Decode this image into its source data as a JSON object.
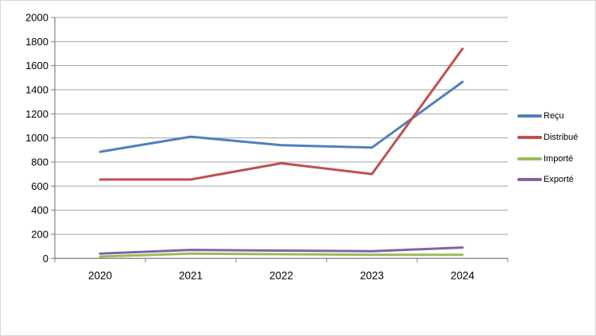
{
  "chart_data": {
    "type": "line",
    "title": "",
    "categories": [
      "2020",
      "2021",
      "2022",
      "2023",
      "2024"
    ],
    "series": [
      {
        "name": "Reçu",
        "color": "#4F81BD",
        "values": [
          885,
          1010,
          940,
          920,
          1465
        ]
      },
      {
        "name": "Distribué",
        "color": "#C0504D",
        "values": [
          655,
          655,
          790,
          700,
          1740
        ]
      },
      {
        "name": "Importé",
        "color": "#9BBB59",
        "values": [
          15,
          40,
          35,
          30,
          30
        ]
      },
      {
        "name": "Exporté",
        "color": "#8064A2",
        "values": [
          40,
          70,
          65,
          60,
          90
        ]
      }
    ],
    "xlabel": "",
    "ylabel": "",
    "ylim": [
      0,
      2000
    ],
    "y_tick_step": 200,
    "y_tick_labels": [
      "0",
      "200",
      "400",
      "600",
      "800",
      "1000",
      "1200",
      "1400",
      "1600",
      "1800",
      "2000"
    ],
    "grid": true,
    "legend_position": "right"
  },
  "colors": {
    "gridline": "#A3A3A3",
    "axis": "#808080",
    "text": "#000000",
    "background": "#FFFFFF"
  }
}
